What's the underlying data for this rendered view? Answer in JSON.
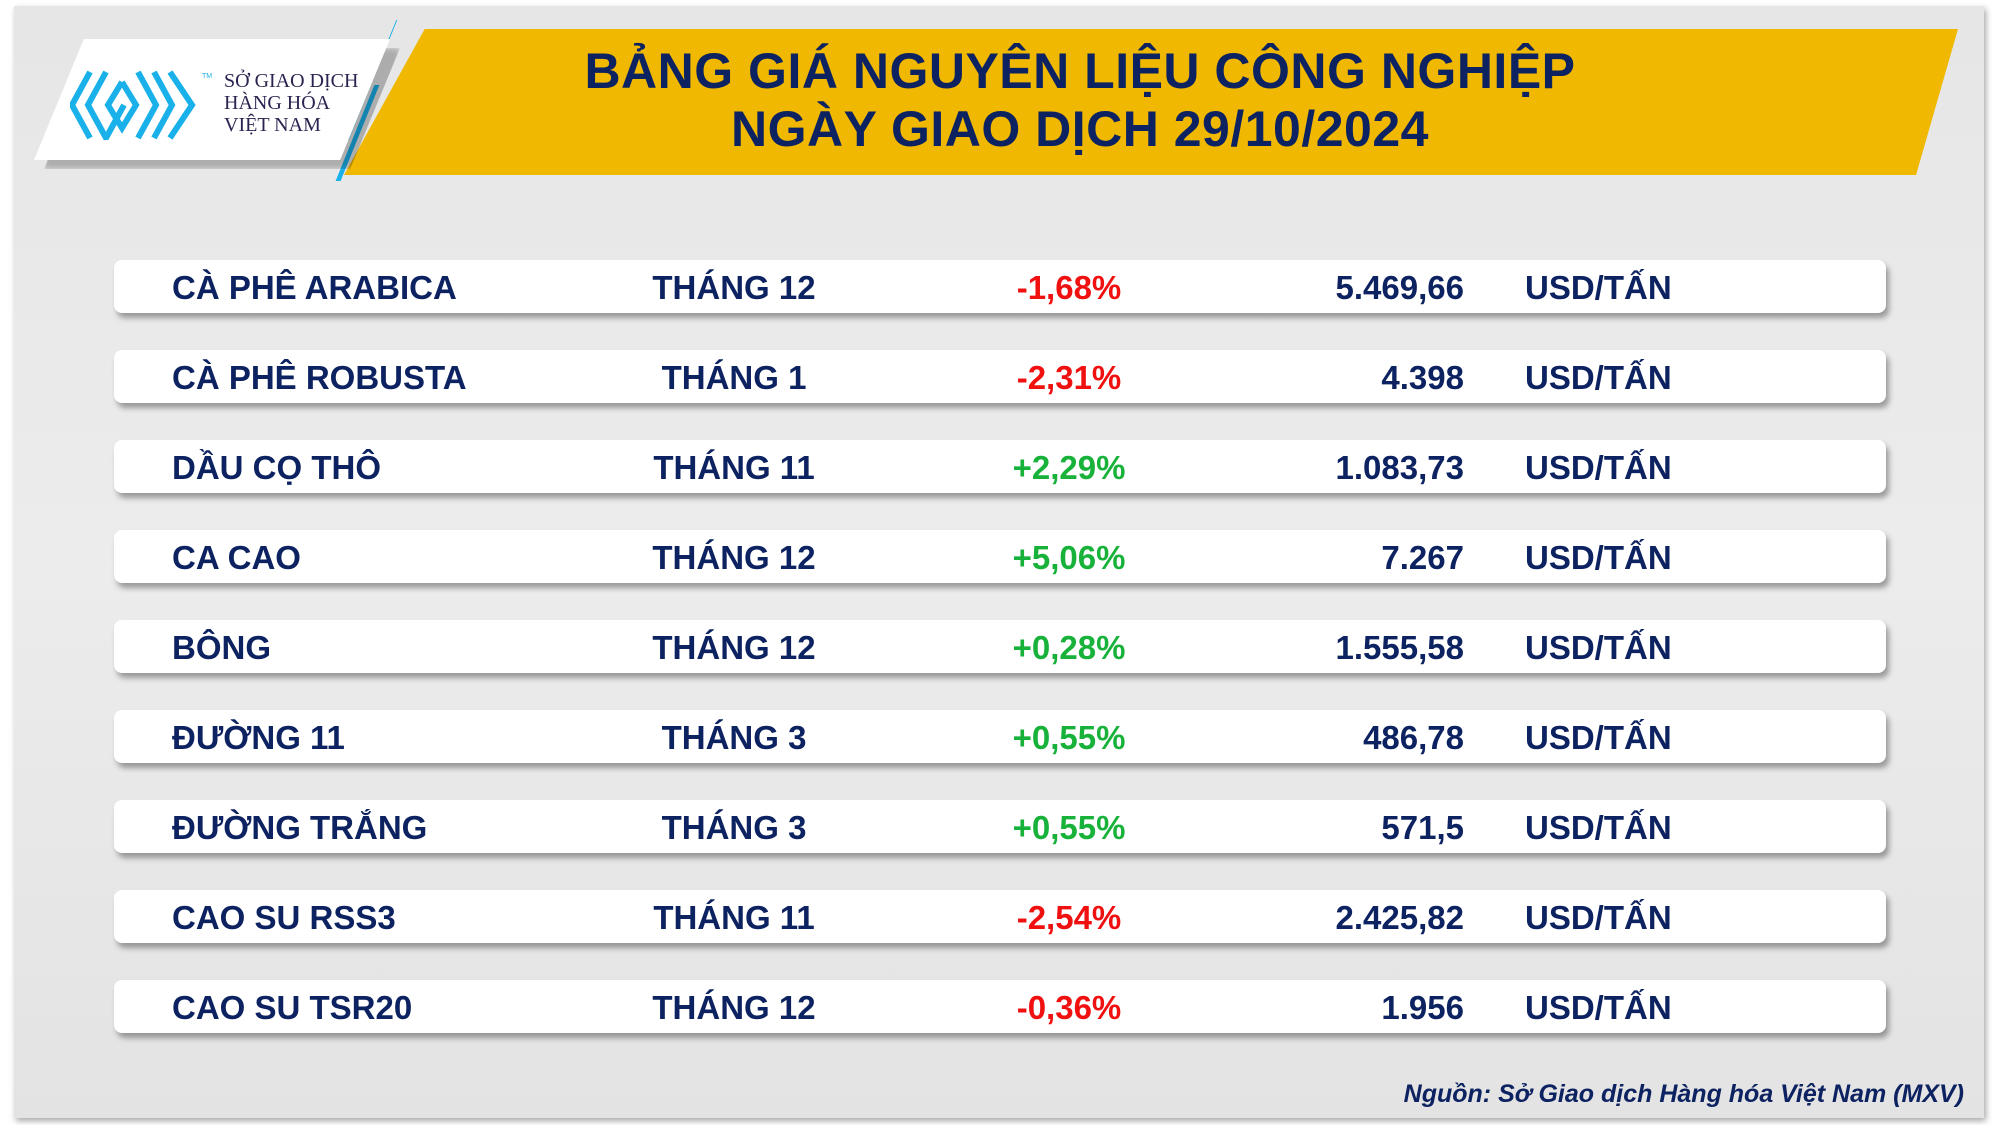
{
  "logo": {
    "lines": [
      "SỞ GIAO DỊCH",
      "HÀNG HÓA",
      "VIỆT NAM"
    ],
    "tm": "TM"
  },
  "header": {
    "title_line1": "BẢNG GIÁ NGUYÊN LIỆU CÔNG NGHIỆP",
    "title_line2": "NGÀY GIAO DỊCH 29/10/2024"
  },
  "colors": {
    "banner": "#f0b800",
    "navy": "#0d2260",
    "negative": "#f01010",
    "positive": "#18b23a",
    "logo_blue": "#1ab0ea"
  },
  "rows": [
    {
      "name": "CÀ PHÊ ARABICA",
      "month": "THÁNG 12",
      "change": "-1,68%",
      "price": "5.469,66",
      "unit": "USD/TẤN",
      "dir": "neg"
    },
    {
      "name": "CÀ PHÊ ROBUSTA",
      "month": "THÁNG 1",
      "change": "-2,31%",
      "price": "4.398",
      "unit": "USD/TẤN",
      "dir": "neg"
    },
    {
      "name": "DẦU CỌ THÔ",
      "month": "THÁNG 11",
      "change": "+2,29%",
      "price": "1.083,73",
      "unit": "USD/TẤN",
      "dir": "pos"
    },
    {
      "name": "CA CAO",
      "month": "THÁNG 12",
      "change": "+5,06%",
      "price": "7.267",
      "unit": "USD/TẤN",
      "dir": "pos"
    },
    {
      "name": "BÔNG",
      "month": "THÁNG 12",
      "change": "+0,28%",
      "price": "1.555,58",
      "unit": "USD/TẤN",
      "dir": "pos"
    },
    {
      "name": "ĐƯỜNG 11",
      "month": "THÁNG 3",
      "change": "+0,55%",
      "price": "486,78",
      "unit": "USD/TẤN",
      "dir": "pos"
    },
    {
      "name": "ĐƯỜNG TRẮNG",
      "month": "THÁNG 3",
      "change": "+0,55%",
      "price": "571,5",
      "unit": "USD/TẤN",
      "dir": "pos"
    },
    {
      "name": "CAO SU RSS3",
      "month": "THÁNG 11",
      "change": "-2,54%",
      "price": "2.425,82",
      "unit": "USD/TẤN",
      "dir": "neg"
    },
    {
      "name": "CAO SU TSR20",
      "month": "THÁNG 12",
      "change": "-0,36%",
      "price": "1.956",
      "unit": "USD/TẤN",
      "dir": "neg"
    }
  ],
  "footer": {
    "source": "Nguồn: Sở Giao dịch Hàng hóa Việt Nam (MXV)"
  }
}
